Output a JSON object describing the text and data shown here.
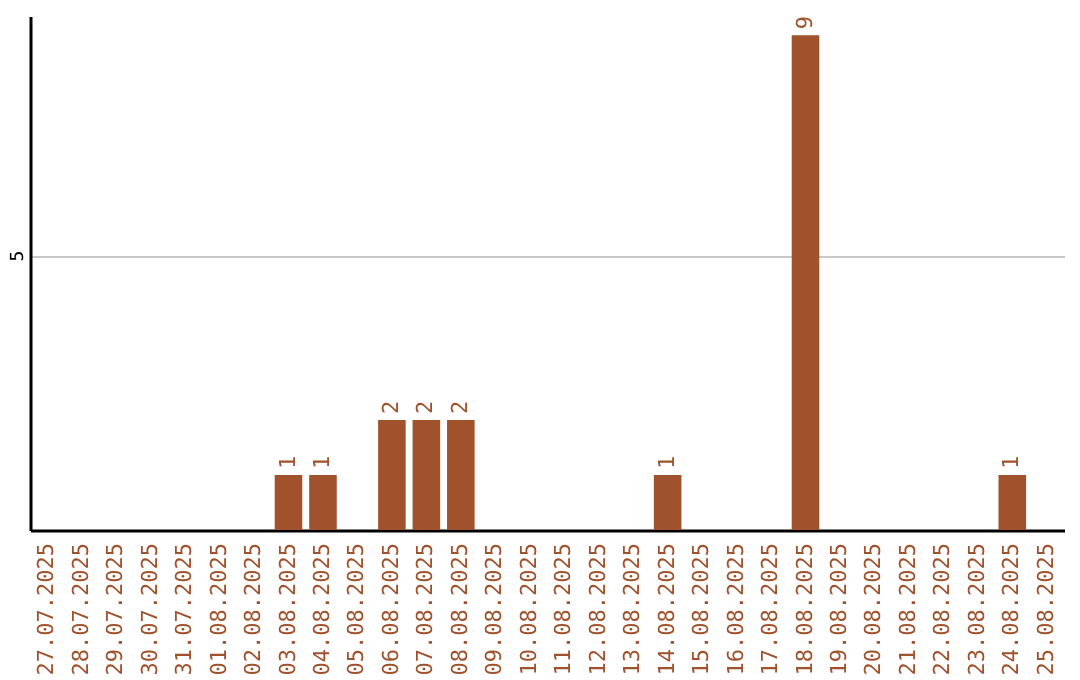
{
  "chart_data": {
    "type": "bar",
    "categories": [
      "27.07.2025",
      "28.07.2025",
      "29.07.2025",
      "30.07.2025",
      "31.07.2025",
      "01.08.2025",
      "02.08.2025",
      "03.08.2025",
      "04.08.2025",
      "05.08.2025",
      "06.08.2025",
      "07.08.2025",
      "08.08.2025",
      "09.08.2025",
      "10.08.2025",
      "11.08.2025",
      "12.08.2025",
      "13.08.2025",
      "14.08.2025",
      "15.08.2025",
      "16.08.2025",
      "17.08.2025",
      "18.08.2025",
      "19.08.2025",
      "20.08.2025",
      "21.08.2025",
      "22.08.2025",
      "23.08.2025",
      "24.08.2025",
      "25.08.2025"
    ],
    "values": [
      0,
      0,
      0,
      0,
      0,
      0,
      0,
      1,
      1,
      0,
      2,
      2,
      2,
      0,
      0,
      0,
      0,
      0,
      1,
      0,
      0,
      0,
      9,
      0,
      0,
      0,
      0,
      0,
      1,
      0
    ],
    "value_labels": [
      null,
      null,
      null,
      null,
      null,
      null,
      null,
      "1",
      "1",
      null,
      "2",
      "2",
      "2",
      null,
      null,
      null,
      null,
      null,
      "1",
      null,
      null,
      null,
      "9",
      null,
      null,
      null,
      null,
      null,
      "1",
      null
    ],
    "color": "#a0522d",
    "ylim": [
      0,
      9.35
    ],
    "yticks": [
      5
    ],
    "grid": "y"
  }
}
